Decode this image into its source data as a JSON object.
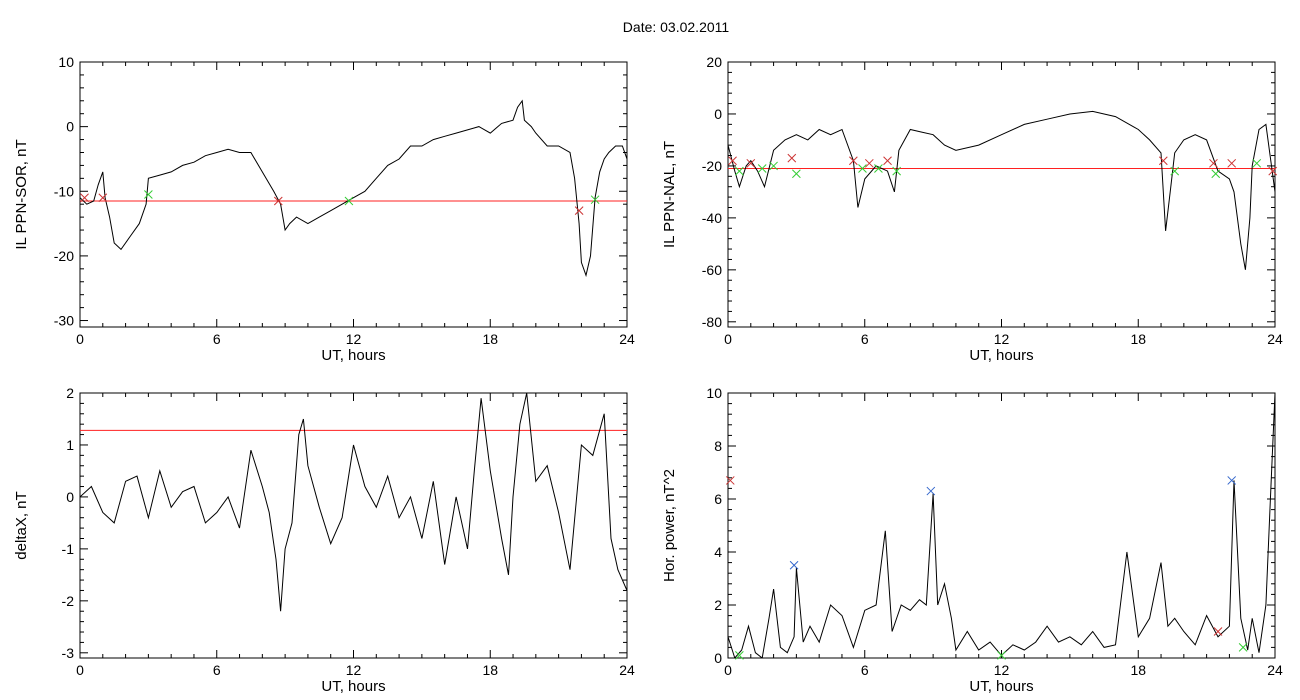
{
  "title": "Date:  03.02.2011",
  "chart_data": [
    {
      "id": "sor",
      "type": "line",
      "xlabel": "UT, hours",
      "ylabel": "IL PPN-SOR, nT",
      "xlim": [
        0,
        24
      ],
      "ylim": [
        -31,
        10
      ],
      "xticks": [
        0,
        6,
        12,
        18,
        24
      ],
      "yticks": [
        -30,
        -20,
        -10,
        0,
        10
      ],
      "threshold": -11.5,
      "series": [
        {
          "color": "#000000",
          "x": [
            0,
            0.3,
            0.6,
            0.8,
            1.0,
            1.1,
            1.3,
            1.5,
            1.8,
            2.2,
            2.6,
            2.9,
            3.0,
            3.5,
            4.0,
            4.5,
            5.0,
            5.5,
            6.0,
            6.5,
            7.0,
            7.5,
            8.0,
            8.5,
            8.8,
            9.0,
            9.2,
            9.5,
            10.0,
            10.5,
            11.0,
            11.5,
            12.0,
            12.5,
            13.0,
            13.5,
            14.0,
            14.5,
            15.0,
            15.5,
            16.0,
            16.5,
            17.0,
            17.5,
            18.0,
            18.5,
            19.0,
            19.2,
            19.4,
            19.5,
            19.8,
            20.0,
            20.5,
            21.0,
            21.5,
            21.7,
            21.9,
            22.0,
            22.2,
            22.4,
            22.6,
            22.8,
            23.0,
            23.2,
            23.5,
            23.8,
            24.0
          ],
          "y": [
            -11,
            -12,
            -11.5,
            -9,
            -7,
            -11,
            -14,
            -18,
            -19,
            -17,
            -15,
            -12,
            -8,
            -7.5,
            -7,
            -6,
            -5.5,
            -4.5,
            -4,
            -3.5,
            -4,
            -4,
            -7,
            -10,
            -12,
            -16,
            -15,
            -14,
            -15,
            -14,
            -13,
            -12,
            -11,
            -10,
            -8,
            -6,
            -5,
            -3,
            -3,
            -2,
            -1.5,
            -1,
            -0.5,
            0,
            -1,
            0.5,
            1,
            3,
            4,
            1,
            0,
            -1,
            -3,
            -3,
            -4,
            -8,
            -15,
            -21,
            -23,
            -20,
            -11,
            -7,
            -5,
            -4,
            -3,
            -3,
            -5
          ]
        }
      ],
      "markers": [
        {
          "x": 0.2,
          "y": -11,
          "color": "#cc3333"
        },
        {
          "x": 1.0,
          "y": -11,
          "color": "#cc3333"
        },
        {
          "x": 3.0,
          "y": -10.5,
          "color": "#33cc33"
        },
        {
          "x": 8.7,
          "y": -11.5,
          "color": "#cc3333"
        },
        {
          "x": 11.8,
          "y": -11.5,
          "color": "#33cc33"
        },
        {
          "x": 21.9,
          "y": -13,
          "color": "#cc3333"
        },
        {
          "x": 22.6,
          "y": -11.3,
          "color": "#33cc33"
        }
      ]
    },
    {
      "id": "nal",
      "type": "line",
      "xlabel": "UT, hours",
      "ylabel": "IL PPN-NAL, nT",
      "xlim": [
        0,
        24
      ],
      "ylim": [
        -82,
        20
      ],
      "xticks": [
        0,
        6,
        12,
        18,
        24
      ],
      "yticks": [
        -80,
        -60,
        -40,
        -20,
        0,
        20
      ],
      "threshold": -21,
      "series": [
        {
          "color": "#000000",
          "x": [
            0,
            0.3,
            0.5,
            0.8,
            1.0,
            1.3,
            1.6,
            2.0,
            2.5,
            3.0,
            3.5,
            4.0,
            4.5,
            5.0,
            5.5,
            5.7,
            6.0,
            6.5,
            7.0,
            7.3,
            7.5,
            8.0,
            8.5,
            9.0,
            9.5,
            10.0,
            11.0,
            12.0,
            13.0,
            14.0,
            15.0,
            16.0,
            17.0,
            18.0,
            18.5,
            19.0,
            19.2,
            19.4,
            19.6,
            20.0,
            20.5,
            21.0,
            21.5,
            22.0,
            22.2,
            22.5,
            22.7,
            22.9,
            23.0,
            23.3,
            23.6,
            24.0
          ],
          "y": [
            -12,
            -22,
            -28,
            -20,
            -18,
            -22,
            -28,
            -14,
            -10,
            -8,
            -10,
            -6,
            -8,
            -6,
            -18,
            -36,
            -25,
            -20,
            -22,
            -30,
            -14,
            -6,
            -7,
            -8,
            -12,
            -14,
            -12,
            -8,
            -4,
            -2,
            0,
            1,
            -1,
            -6,
            -10,
            -15,
            -45,
            -30,
            -15,
            -10,
            -8,
            -10,
            -22,
            -25,
            -30,
            -50,
            -60,
            -40,
            -20,
            -6,
            -4,
            -30
          ]
        }
      ],
      "markers": [
        {
          "x": 0.2,
          "y": -18,
          "color": "#cc3333"
        },
        {
          "x": 0.5,
          "y": -22,
          "color": "#33cc33"
        },
        {
          "x": 1.0,
          "y": -19,
          "color": "#cc3333"
        },
        {
          "x": 1.5,
          "y": -21,
          "color": "#33cc33"
        },
        {
          "x": 2.0,
          "y": -20,
          "color": "#33cc33"
        },
        {
          "x": 2.8,
          "y": -17,
          "color": "#cc3333"
        },
        {
          "x": 3.0,
          "y": -23,
          "color": "#33cc33"
        },
        {
          "x": 5.5,
          "y": -18,
          "color": "#cc3333"
        },
        {
          "x": 5.9,
          "y": -21,
          "color": "#33cc33"
        },
        {
          "x": 6.2,
          "y": -19,
          "color": "#cc3333"
        },
        {
          "x": 6.6,
          "y": -21,
          "color": "#33cc33"
        },
        {
          "x": 7.0,
          "y": -18,
          "color": "#cc3333"
        },
        {
          "x": 7.4,
          "y": -22,
          "color": "#33cc33"
        },
        {
          "x": 19.1,
          "y": -18,
          "color": "#cc3333"
        },
        {
          "x": 19.6,
          "y": -22,
          "color": "#33cc33"
        },
        {
          "x": 21.3,
          "y": -19,
          "color": "#cc3333"
        },
        {
          "x": 21.4,
          "y": -23,
          "color": "#33cc33"
        },
        {
          "x": 22.1,
          "y": -19,
          "color": "#cc3333"
        },
        {
          "x": 23.2,
          "y": -19,
          "color": "#33cc33"
        },
        {
          "x": 23.9,
          "y": -22,
          "color": "#cc3333"
        }
      ]
    },
    {
      "id": "deltax",
      "type": "line",
      "xlabel": "UT, hours",
      "ylabel": "deltaX, nT",
      "xlim": [
        0,
        24
      ],
      "ylim": [
        -3.1,
        2
      ],
      "xticks": [
        0,
        6,
        12,
        18,
        24
      ],
      "yticks": [
        -3,
        -2,
        -1,
        0,
        1,
        2
      ],
      "threshold": 1.28,
      "series": [
        {
          "color": "#000000",
          "x": [
            0,
            0.5,
            1.0,
            1.5,
            2.0,
            2.5,
            3.0,
            3.5,
            4.0,
            4.5,
            5.0,
            5.5,
            6.0,
            6.5,
            7.0,
            7.5,
            8.0,
            8.3,
            8.6,
            8.8,
            9.0,
            9.3,
            9.6,
            9.8,
            10.0,
            10.5,
            11.0,
            11.5,
            12.0,
            12.5,
            13.0,
            13.5,
            14.0,
            14.5,
            15.0,
            15.5,
            16.0,
            16.5,
            17.0,
            17.3,
            17.6,
            18.0,
            18.5,
            18.8,
            19.0,
            19.3,
            19.6,
            20.0,
            20.5,
            21.0,
            21.5,
            22.0,
            22.5,
            23.0,
            23.3,
            23.6,
            24.0
          ],
          "y": [
            0,
            0.2,
            -0.3,
            -0.5,
            0.3,
            0.4,
            -0.4,
            0.5,
            -0.2,
            0.1,
            0.2,
            -0.5,
            -0.3,
            0,
            -0.6,
            0.9,
            0.2,
            -0.3,
            -1.2,
            -2.2,
            -1,
            -0.5,
            1.2,
            1.5,
            0.6,
            -0.2,
            -0.9,
            -0.4,
            1.0,
            0.2,
            -0.2,
            0.4,
            -0.4,
            0,
            -0.8,
            0.3,
            -1.3,
            0,
            -1,
            0.5,
            1.9,
            0.5,
            -0.8,
            -1.5,
            0,
            1.4,
            2.0,
            0.3,
            0.6,
            -0.3,
            -1.4,
            1.0,
            0.8,
            1.6,
            -0.8,
            -1.4,
            -1.8
          ]
        }
      ],
      "markers": []
    },
    {
      "id": "hpow",
      "type": "line",
      "xlabel": "UT, hours",
      "ylabel": "Hor. power, nT^2",
      "xlim": [
        0,
        24
      ],
      "ylim": [
        0,
        10
      ],
      "xticks": [
        0,
        6,
        12,
        18,
        24
      ],
      "yticks": [
        0,
        2,
        4,
        6,
        8,
        10
      ],
      "threshold": null,
      "series": [
        {
          "color": "#000000",
          "x": [
            0,
            0.3,
            0.6,
            0.9,
            1.2,
            1.5,
            1.8,
            2.0,
            2.3,
            2.6,
            2.9,
            3.0,
            3.3,
            3.6,
            4.0,
            4.5,
            5.0,
            5.5,
            6.0,
            6.5,
            6.9,
            7.2,
            7.6,
            8.0,
            8.4,
            8.7,
            9.0,
            9.2,
            9.5,
            9.8,
            10.0,
            10.5,
            11.0,
            11.5,
            12.0,
            12.5,
            13.0,
            13.5,
            14.0,
            14.5,
            15.0,
            15.5,
            16.0,
            16.5,
            17.0,
            17.5,
            18.0,
            18.5,
            19.0,
            19.3,
            19.6,
            20.0,
            20.5,
            21.0,
            21.5,
            22.0,
            22.2,
            22.5,
            22.8,
            23.0,
            23.3,
            23.6,
            23.8,
            24.0
          ],
          "y": [
            0.8,
            0,
            0.3,
            1.2,
            0.2,
            0,
            1.5,
            2.6,
            0.4,
            0.2,
            0.8,
            3.4,
            0.6,
            1.2,
            0.6,
            2.0,
            1.6,
            0.4,
            1.8,
            2.0,
            4.8,
            1.0,
            2.0,
            1.8,
            2.2,
            2.0,
            6.2,
            2.0,
            2.8,
            1.5,
            0.3,
            1.0,
            0.3,
            0.6,
            0.1,
            0.5,
            0.3,
            0.6,
            1.2,
            0.6,
            0.8,
            0.5,
            1.0,
            0.4,
            0.5,
            4.0,
            0.8,
            1.5,
            3.6,
            1.2,
            1.5,
            1.0,
            0.5,
            1.6,
            0.8,
            1.2,
            6.7,
            1.5,
            0.3,
            1.5,
            0.2,
            2.0,
            6.0,
            10.0
          ]
        }
      ],
      "markers": [
        {
          "x": 0.1,
          "y": 6.7,
          "color": "#cc3333"
        },
        {
          "x": 0.5,
          "y": 0.1,
          "color": "#33cc33"
        },
        {
          "x": 2.9,
          "y": 3.5,
          "color": "#3366cc"
        },
        {
          "x": 8.9,
          "y": 6.3,
          "color": "#3366cc"
        },
        {
          "x": 12.0,
          "y": 0.1,
          "color": "#33cc33"
        },
        {
          "x": 21.5,
          "y": 1.0,
          "color": "#cc3333"
        },
        {
          "x": 22.1,
          "y": 6.7,
          "color": "#3366cc"
        },
        {
          "x": 22.6,
          "y": 0.4,
          "color": "#33cc33"
        }
      ]
    }
  ]
}
